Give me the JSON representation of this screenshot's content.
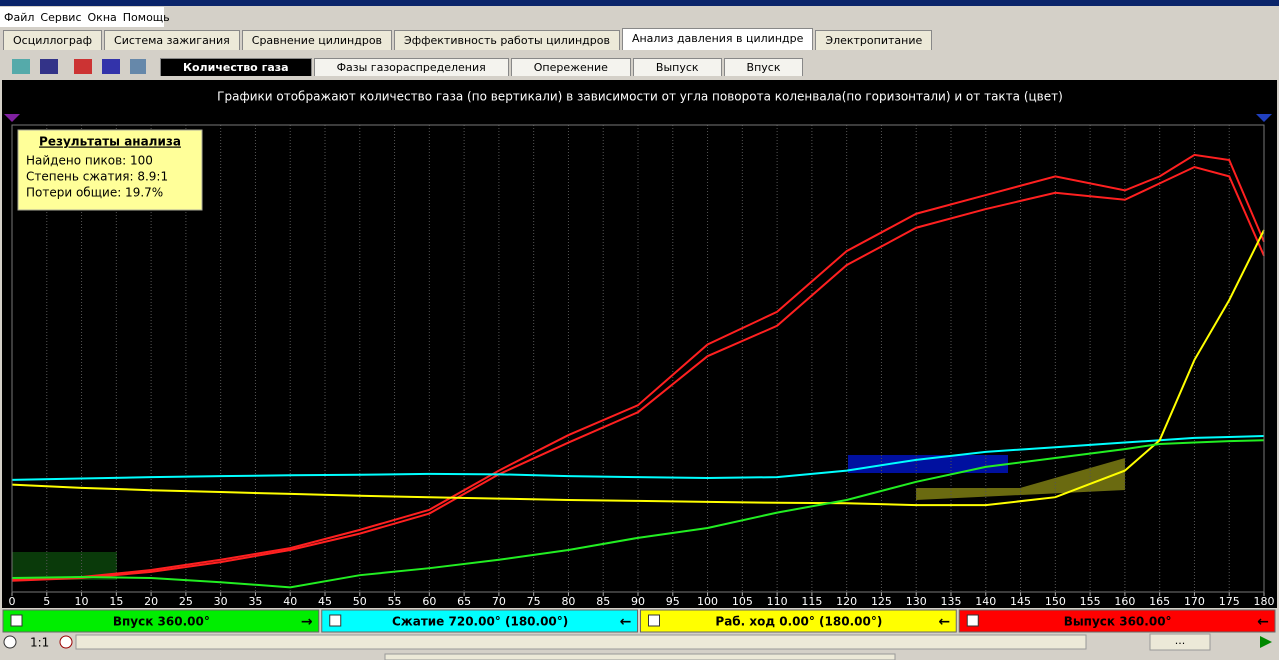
{
  "menu": [
    "Файл",
    "Сервис",
    "Окна",
    "Помощь"
  ],
  "tabs": [
    "Осциллограф",
    "Система зажигания",
    "Сравнение цилиндров",
    "Эффективность работы цилиндров",
    "Анализ давления в цилиндре",
    "Электропитание"
  ],
  "active_tab": 4,
  "subtabs": [
    "Количество газа",
    "Фазы газораспределения",
    "Опережение",
    "Выпуск",
    "Впуск"
  ],
  "active_subtab": 0,
  "info": {
    "title": "Результаты анализа",
    "lines": [
      "Найдено пиков: 100",
      "Степень сжатия: 8.9:1",
      "Потери общие: 19.7%"
    ]
  },
  "strokes": [
    {
      "label": "Впуск 360.00°",
      "color": "#00ee00"
    },
    {
      "label": "Сжатие 720.00° (180.00°)",
      "color": "#00ffff"
    },
    {
      "label": "Раб. ход 0.00° (180.00°)",
      "color": "#ffff00"
    },
    {
      "label": "Выпуск 360.00°",
      "color": "#ff0000"
    }
  ],
  "status": {
    "zoom": "1:1",
    "nav": "..."
  },
  "chart_data": {
    "type": "line",
    "title": "Графики отображают количество газа (по вертикали) в зависимости от угла поворота коленвала(по горизонтали) и от такта (цвет)",
    "x": [
      0,
      10,
      20,
      30,
      40,
      50,
      60,
      70,
      80,
      90,
      100,
      110,
      120,
      130,
      140,
      150,
      160,
      165,
      170,
      175,
      180
    ],
    "series": [
      {
        "color": "#ff2020",
        "values": [
          2.6,
          3.2,
          4.7,
          6.9,
          9.4,
          13.3,
          17.6,
          26,
          33.6,
          40,
          53,
          60,
          73,
          81,
          85,
          89,
          86,
          89,
          93.6,
          92.5,
          75
        ]
      },
      {
        "color": "#ff2020",
        "values": [
          2.4,
          3,
          4.3,
          6.4,
          9,
          12.5,
          16.8,
          25.2,
          32,
          38.5,
          50.5,
          57,
          70,
          78,
          82,
          85.5,
          84,
          87.5,
          91,
          89,
          72
        ]
      },
      {
        "color": "#00ffff",
        "values": [
          24,
          24.3,
          24.6,
          24.8,
          25,
          25.1,
          25.3,
          25.2,
          24.8,
          24.6,
          24.4,
          24.6,
          26,
          28.3,
          30,
          31,
          32,
          32.5,
          33,
          33.2,
          33.4
        ]
      },
      {
        "color": "#ffff00",
        "values": [
          23,
          22.3,
          21.8,
          21.4,
          21,
          20.6,
          20.3,
          20,
          19.7,
          19.5,
          19.3,
          19.1,
          19,
          18.6,
          18.6,
          20.3,
          26,
          32.5,
          49.7,
          62.5,
          77.5
        ]
      },
      {
        "color": "#22ee22",
        "values": [
          3,
          3.2,
          3,
          2.1,
          1,
          3.6,
          5.1,
          6.9,
          9,
          11.6,
          13.7,
          17,
          19.7,
          23.6,
          26.8,
          28.7,
          30.6,
          31.7,
          32,
          32.3,
          32.5
        ]
      }
    ],
    "xlim": [
      0,
      180
    ],
    "xticks": [
      0,
      5,
      10,
      15,
      20,
      25,
      30,
      35,
      40,
      45,
      50,
      55,
      60,
      65,
      70,
      75,
      80,
      85,
      90,
      95,
      100,
      105,
      110,
      115,
      120,
      125,
      130,
      135,
      140,
      145,
      150,
      155,
      160,
      165,
      170,
      175,
      180
    ],
    "ylim": [
      0,
      100
    ],
    "grid": true
  }
}
